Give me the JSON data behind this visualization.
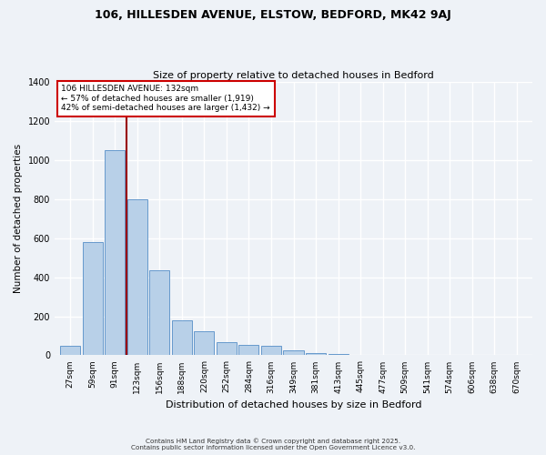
{
  "title": "106, HILLESDEN AVENUE, ELSTOW, BEDFORD, MK42 9AJ",
  "subtitle": "Size of property relative to detached houses in Bedford",
  "xlabel": "Distribution of detached houses by size in Bedford",
  "ylabel": "Number of detached properties",
  "bar_values": [
    50,
    580,
    1050,
    800,
    435,
    180,
    125,
    68,
    55,
    48,
    25,
    12,
    5,
    2,
    1,
    0,
    0,
    1,
    0,
    0,
    0
  ],
  "bin_labels": [
    "27sqm",
    "59sqm",
    "91sqm",
    "123sqm",
    "156sqm",
    "188sqm",
    "220sqm",
    "252sqm",
    "284sqm",
    "316sqm",
    "349sqm",
    "381sqm",
    "413sqm",
    "445sqm",
    "477sqm",
    "509sqm",
    "541sqm",
    "574sqm",
    "606sqm",
    "638sqm",
    "670sqm"
  ],
  "bar_color": "#b8d0e8",
  "bar_edge_color": "#6699cc",
  "vline_color": "#990000",
  "vline_x": 3,
  "annotation_title": "106 HILLESDEN AVENUE: 132sqm",
  "annotation_line1": "← 57% of detached houses are smaller (1,919)",
  "annotation_line2": "42% of semi-detached houses are larger (1,432) →",
  "annotation_box_color": "#ffffff",
  "annotation_box_edge": "#cc0000",
  "ylim": [
    0,
    1400
  ],
  "yticks": [
    0,
    200,
    400,
    600,
    800,
    1000,
    1200,
    1400
  ],
  "footer_line1": "Contains HM Land Registry data © Crown copyright and database right 2025.",
  "footer_line2": "Contains public sector information licensed under the Open Government Licence v3.0.",
  "bg_color": "#eef2f7",
  "plot_bg_color": "#eef2f7",
  "grid_color": "#ffffff"
}
